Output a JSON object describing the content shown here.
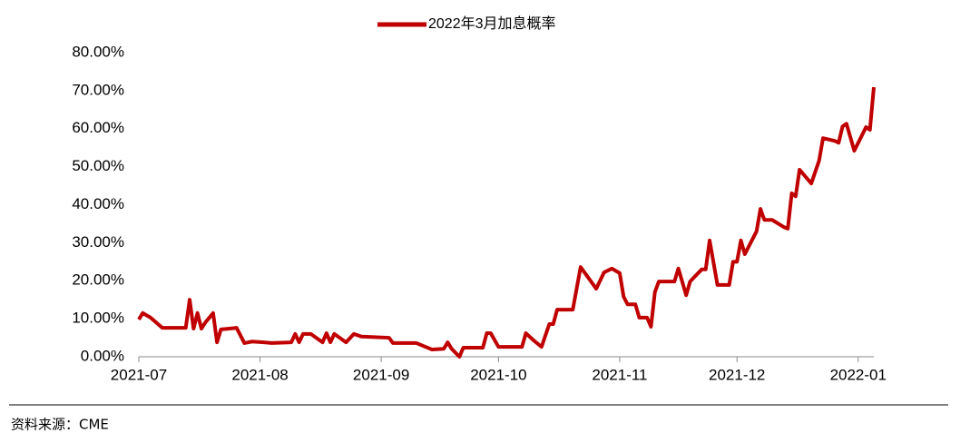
{
  "chart_data": {
    "type": "line",
    "legend_position": "top",
    "xlim": [
      0,
      188
    ],
    "xticks": [
      {
        "value": 0,
        "label": "2021-07"
      },
      {
        "value": 31,
        "label": "2021-08"
      },
      {
        "value": 62,
        "label": "2021-09"
      },
      {
        "value": 92,
        "label": "2021-10"
      },
      {
        "value": 123,
        "label": "2021-11"
      },
      {
        "value": 153,
        "label": "2021-12"
      },
      {
        "value": 184,
        "label": "2022-01"
      }
    ],
    "ylim": [
      0,
      80
    ],
    "yticks": [
      {
        "value": 0,
        "label": "0.00%"
      },
      {
        "value": 10,
        "label": "10.00%"
      },
      {
        "value": 20,
        "label": "20.00%"
      },
      {
        "value": 30,
        "label": "30.00%"
      },
      {
        "value": 40,
        "label": "40.00%"
      },
      {
        "value": 50,
        "label": "50.00%"
      },
      {
        "value": 60,
        "label": "60.00%"
      },
      {
        "value": 70,
        "label": "70.00%"
      },
      {
        "value": 80,
        "label": "80.00%"
      }
    ],
    "x": [
      0,
      1,
      3,
      6,
      11,
      12,
      13,
      14,
      15,
      16,
      17,
      19,
      20,
      21,
      25,
      27,
      29,
      32,
      34,
      39,
      40,
      41,
      42,
      44,
      47,
      48,
      49,
      50,
      53,
      55,
      57,
      64,
      65,
      71,
      75,
      78,
      79,
      80,
      82,
      83,
      88,
      89,
      90,
      92,
      98,
      99,
      101,
      103,
      105,
      106,
      107,
      110,
      111,
      113,
      117,
      119,
      121,
      123,
      124,
      125,
      127,
      128,
      130,
      131,
      132,
      133,
      137,
      138,
      140,
      141,
      144,
      145,
      146,
      148,
      151,
      152,
      153,
      154,
      155,
      158,
      159,
      160,
      162,
      165,
      166,
      167,
      168,
      169,
      172,
      174,
      175,
      178,
      179,
      180,
      181,
      183,
      186,
      187,
      188
    ],
    "series": [
      {
        "name": "2022年3月加息概率",
        "color": "#c00000",
        "values": [
          9.8,
          11.5,
          10.3,
          7.6,
          7.6,
          7.6,
          15,
          7.4,
          11.5,
          7.4,
          9,
          11.5,
          3.8,
          7.2,
          7.6,
          3.6,
          4,
          3.8,
          3.6,
          3.8,
          6,
          3.8,
          6,
          6,
          3.8,
          6.2,
          3.8,
          6,
          3.8,
          6,
          5.3,
          5,
          3.6,
          3.6,
          1.9,
          2.1,
          3.8,
          2.1,
          0,
          2.4,
          2.4,
          6.2,
          6.2,
          2.6,
          2.6,
          6.2,
          4.3,
          2.6,
          8.6,
          8.6,
          12.4,
          12.4,
          12.4,
          23.6,
          17.9,
          22.2,
          23.2,
          22,
          15.8,
          13.8,
          13.8,
          10.3,
          10.3,
          7.9,
          17,
          19.8,
          19.8,
          23.2,
          16.2,
          19.8,
          23,
          23,
          30.6,
          18.9,
          18.9,
          25,
          25,
          30.6,
          27,
          33,
          38.9,
          36,
          36,
          34.1,
          33.7,
          43,
          42.2,
          49.2,
          45.6,
          51.6,
          57.5,
          56.8,
          56.3,
          60.6,
          61.3,
          54.2,
          60.4,
          59.7,
          70.9
        ]
      }
    ],
    "source": "资料来源：CME"
  }
}
